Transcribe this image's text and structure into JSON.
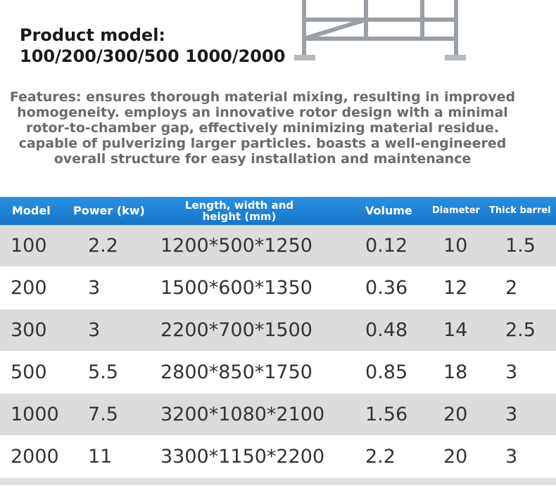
{
  "header": {
    "title": "Product model:",
    "models": "100/200/300/500 1000/2000"
  },
  "features": [
    "Features: ensures thorough material mixing, resulting in improved",
    "homogeneity. employs an innovative rotor design with a minimal",
    "rotor-to-chamber gap, effectively minimizing material residue.",
    "capable of pulverizing larger particles. boasts a well-engineered",
    "overall structure for easy installation and maintenance"
  ],
  "table": {
    "columns": [
      "Model",
      "Power (kw)",
      "Length, width and height (mm)",
      "Volume",
      "Diameter",
      "Thick barrel"
    ],
    "rows": [
      [
        "100",
        "2.2",
        "1200*500*1250",
        "0.12",
        "10",
        "1.5"
      ],
      [
        "200",
        "3",
        "1500*600*1350",
        "0.36",
        "12",
        "2"
      ],
      [
        "300",
        "3",
        "2200*700*1500",
        "0.48",
        "14",
        "2.5"
      ],
      [
        "500",
        "5.5",
        "2800*850*1750",
        "0.85",
        "18",
        "3"
      ],
      [
        "1000",
        "7.5",
        "3200*1080*2100",
        "1.56",
        "20",
        "3"
      ],
      [
        "2000",
        "11",
        "3300*1150*2200",
        "2.2",
        "20",
        "3"
      ]
    ]
  }
}
